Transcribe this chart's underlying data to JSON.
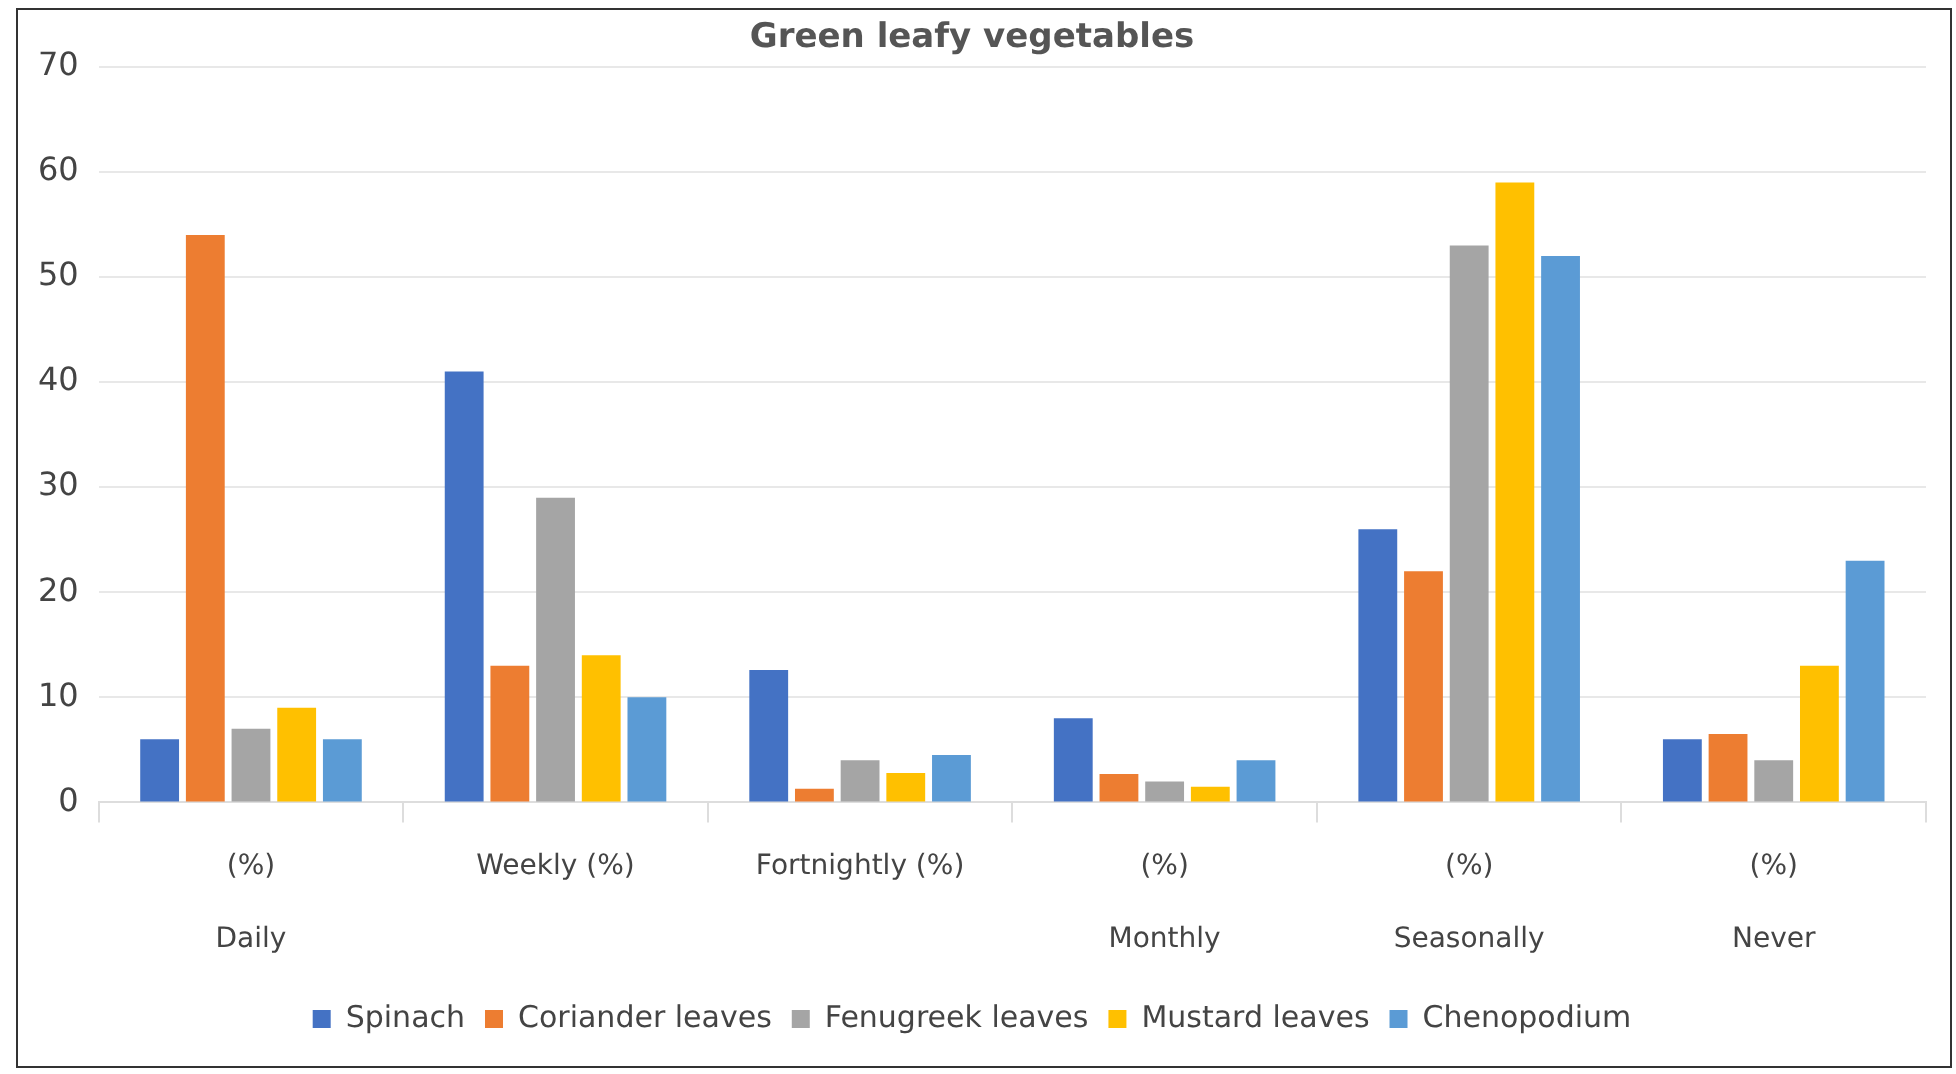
{
  "chart_data": {
    "type": "bar",
    "title": "Green leafy vegetables",
    "categories": [
      "(%)\nDaily",
      "Weekly (%)",
      "Fortnightly (%)",
      "(%)\nMonthly",
      "(%)\nSeasonally",
      "(%)\nNever"
    ],
    "series": [
      {
        "name": "Spinach",
        "color": "#4472c4",
        "values": [
          6,
          41,
          12.6,
          8,
          26,
          6
        ]
      },
      {
        "name": "Coriander leaves",
        "color": "#ed7d31",
        "values": [
          54,
          13,
          1.3,
          2.7,
          22,
          6.5
        ]
      },
      {
        "name": "Fenugreek leaves",
        "color": "#a5a5a5",
        "values": [
          7,
          29,
          4,
          2,
          53,
          4
        ]
      },
      {
        "name": "Mustard leaves",
        "color": "#ffc000",
        "values": [
          9,
          14,
          2.8,
          1.5,
          59,
          13
        ]
      },
      {
        "name": "Chenopodium",
        "color": "#5b9bd5",
        "values": [
          6,
          10,
          4.5,
          4,
          52,
          23
        ]
      }
    ],
    "ylim": [
      0,
      70
    ],
    "yticks": [
      0,
      10,
      20,
      30,
      40,
      50,
      60,
      70
    ],
    "grid": "y",
    "legend": "bottom"
  }
}
